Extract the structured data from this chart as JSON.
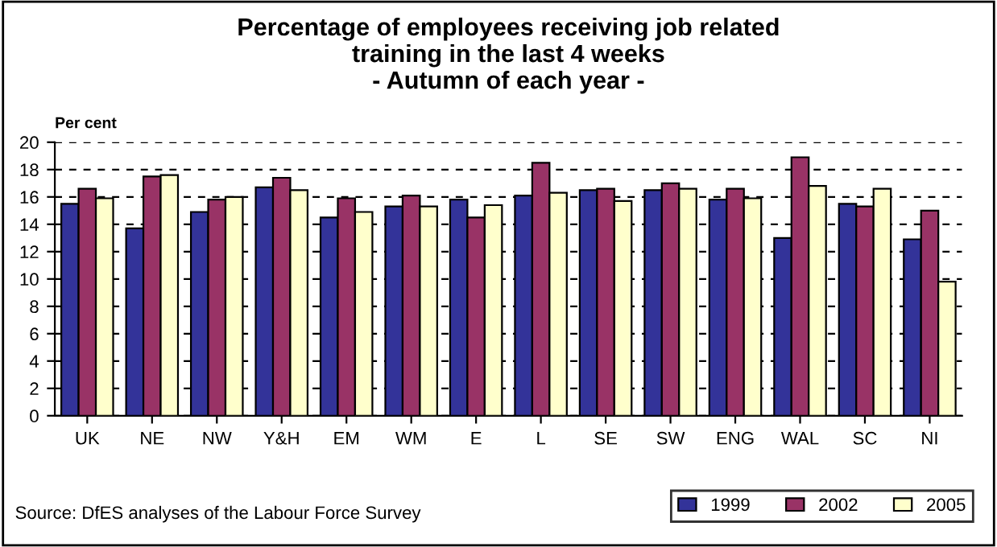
{
  "chart_data": {
    "type": "bar",
    "title": "Percentage of employees receiving job related\ntraining in the last 4 weeks\n- Autumn of each year -",
    "ylabel": "Per cent",
    "categories": [
      "UK",
      "NE",
      "NW",
      "Y&H",
      "EM",
      "WM",
      "E",
      "L",
      "SE",
      "SW",
      "ENG",
      "WAL",
      "SC",
      "NI"
    ],
    "series": [
      {
        "name": "1999",
        "color": "#333399",
        "values": [
          15.5,
          13.7,
          14.9,
          16.7,
          14.5,
          15.3,
          15.8,
          16.1,
          16.5,
          16.5,
          15.8,
          13.0,
          15.5,
          12.9
        ]
      },
      {
        "name": "2002",
        "color": "#993366",
        "values": [
          16.6,
          17.5,
          15.8,
          17.4,
          15.9,
          16.1,
          14.5,
          18.5,
          16.6,
          17.0,
          16.6,
          18.9,
          15.3,
          15.0
        ]
      },
      {
        "name": "2005",
        "color": "#ffffcc",
        "values": [
          15.9,
          17.6,
          16.0,
          16.5,
          14.9,
          15.3,
          15.4,
          16.3,
          15.7,
          16.6,
          15.9,
          16.8,
          16.6,
          9.8
        ]
      }
    ],
    "ylim": [
      0,
      20
    ],
    "yticks": [
      0,
      2,
      4,
      6,
      8,
      10,
      12,
      14,
      16,
      18,
      20
    ],
    "grid": "y",
    "legend": "bottom right",
    "annotations": [
      "Source: DfES analyses of the Labour Force Survey"
    ]
  }
}
